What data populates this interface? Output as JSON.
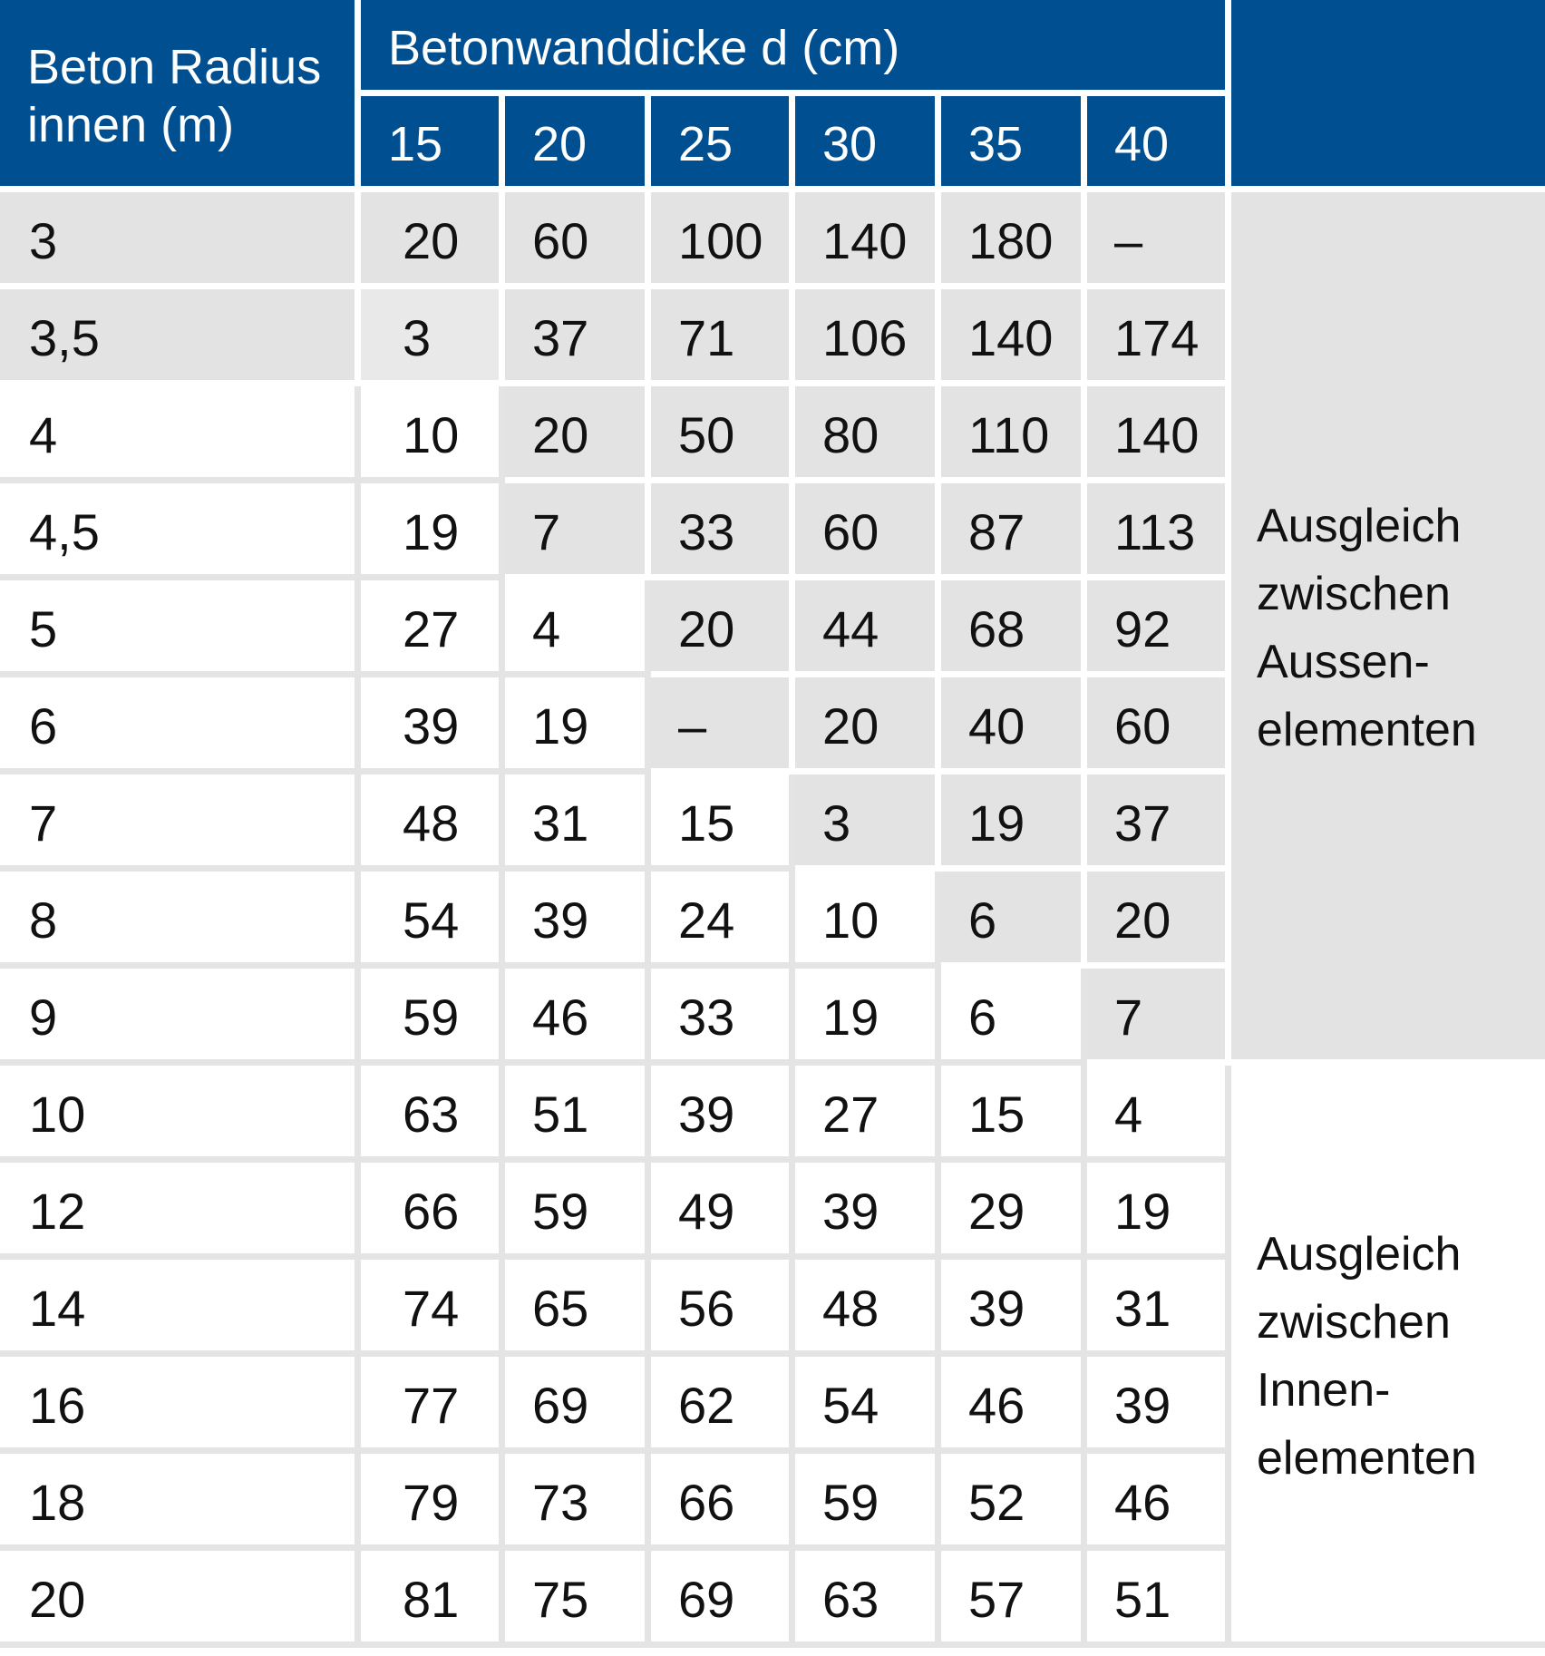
{
  "header": {
    "radius_label_line1": "Beton Radius",
    "radius_label_line2": "innen (m)",
    "thickness_label": "Betonwanddicke d (cm)",
    "thickness_columns": [
      "15",
      "20",
      "25",
      "30",
      "35",
      "40"
    ]
  },
  "rows": [
    {
      "radius": "3",
      "values": [
        "20",
        "60",
        "100",
        "140",
        "180",
        "–"
      ],
      "shaded": [
        1,
        1,
        1,
        1,
        1,
        1,
        1
      ]
    },
    {
      "radius": "3,5",
      "values": [
        "3",
        "37",
        "71",
        "106",
        "140",
        "174"
      ],
      "shaded": [
        1,
        1,
        1,
        1,
        1,
        1,
        1
      ]
    },
    {
      "radius": "4",
      "values": [
        "10",
        "20",
        "50",
        "80",
        "110",
        "140"
      ],
      "shaded": [
        0,
        0,
        1,
        1,
        1,
        1,
        1
      ]
    },
    {
      "radius": "4,5",
      "values": [
        "19",
        "7",
        "33",
        "60",
        "87",
        "113"
      ],
      "shaded": [
        0,
        0,
        1,
        1,
        1,
        1,
        1
      ]
    },
    {
      "radius": "5",
      "values": [
        "27",
        "4",
        "20",
        "44",
        "68",
        "92"
      ],
      "shaded": [
        0,
        0,
        0,
        1,
        1,
        1,
        1
      ]
    },
    {
      "radius": "6",
      "values": [
        "39",
        "19",
        "–",
        "20",
        "40",
        "60"
      ],
      "shaded": [
        0,
        0,
        0,
        1,
        1,
        1,
        1
      ]
    },
    {
      "radius": "7",
      "values": [
        "48",
        "31",
        "15",
        "3",
        "19",
        "37"
      ],
      "shaded": [
        0,
        0,
        0,
        0,
        1,
        1,
        1
      ]
    },
    {
      "radius": "8",
      "values": [
        "54",
        "39",
        "24",
        "10",
        "6",
        "20"
      ],
      "shaded": [
        0,
        0,
        0,
        0,
        0,
        1,
        1
      ]
    },
    {
      "radius": "9",
      "values": [
        "59",
        "46",
        "33",
        "19",
        "6",
        "7"
      ],
      "shaded": [
        0,
        0,
        0,
        0,
        0,
        0,
        1
      ]
    },
    {
      "radius": "10",
      "values": [
        "63",
        "51",
        "39",
        "27",
        "15",
        "4"
      ],
      "shaded": [
        0,
        0,
        0,
        0,
        0,
        0,
        0
      ]
    },
    {
      "radius": "12",
      "values": [
        "66",
        "59",
        "49",
        "39",
        "29",
        "19"
      ],
      "shaded": [
        0,
        0,
        0,
        0,
        0,
        0,
        0
      ]
    },
    {
      "radius": "14",
      "values": [
        "74",
        "65",
        "56",
        "48",
        "39",
        "31"
      ],
      "shaded": [
        0,
        0,
        0,
        0,
        0,
        0,
        0
      ]
    },
    {
      "radius": "16",
      "values": [
        "77",
        "69",
        "62",
        "54",
        "46",
        "39"
      ],
      "shaded": [
        0,
        0,
        0,
        0,
        0,
        0,
        0
      ]
    },
    {
      "radius": "18",
      "values": [
        "79",
        "73",
        "66",
        "59",
        "52",
        "46"
      ],
      "shaded": [
        0,
        0,
        0,
        0,
        0,
        0,
        0
      ]
    },
    {
      "radius": "20",
      "values": [
        "81",
        "75",
        "69",
        "63",
        "57",
        "51"
      ],
      "shaded": [
        0,
        0,
        0,
        0,
        0,
        0,
        0
      ]
    }
  ],
  "notes": {
    "outer": [
      "Ausgleich",
      "zwischen",
      "Aussen-",
      "elementen"
    ],
    "inner": [
      "Ausgleich",
      "zwischen",
      "Innen-",
      "elementen"
    ]
  },
  "colors": {
    "header": "#004f91",
    "shaded": "#e3e3e3",
    "gridline": "#e4e4e4"
  }
}
